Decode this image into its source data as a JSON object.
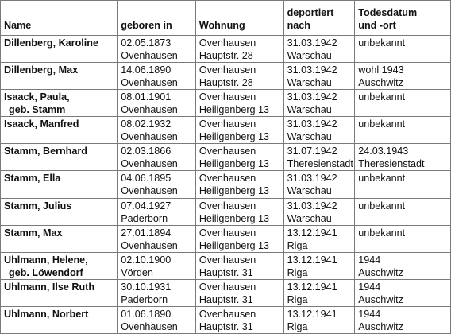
{
  "headers": {
    "name": "Name",
    "born": "geboren in",
    "residence": "Wohnung",
    "deported_1": "deportiert",
    "deported_2": "nach",
    "death_1": "Todesdatum",
    "death_2": "und -ort"
  },
  "rows": [
    {
      "name": [
        "Dillenberg, Karoline",
        ""
      ],
      "born": [
        "02.05.1873",
        "Ovenhausen"
      ],
      "residence": [
        "Ovenhausen",
        "Hauptstr. 28"
      ],
      "deported": [
        "31.03.1942",
        "Warschau"
      ],
      "death": [
        "unbekannt",
        ""
      ]
    },
    {
      "name": [
        "Dillenberg, Max",
        ""
      ],
      "born": [
        "14.06.1890",
        "Ovenhausen"
      ],
      "residence": [
        "Ovenhausen",
        "Hauptstr. 28"
      ],
      "deported": [
        "31.03.1942",
        "Warschau"
      ],
      "death": [
        "wohl 1943",
        "Auschwitz"
      ]
    },
    {
      "name": [
        "Isaack, Paula,",
        "geb. Stamm"
      ],
      "born": [
        "08.01.1901",
        "Ovenhausen"
      ],
      "residence": [
        "Ovenhausen",
        "Heiligenberg 13"
      ],
      "deported": [
        "31.03.1942",
        "Warschau"
      ],
      "death": [
        "unbekannt",
        ""
      ]
    },
    {
      "name": [
        "Isaack, Manfred",
        ""
      ],
      "born": [
        "08.02.1932",
        "Ovenhausen"
      ],
      "residence": [
        "Ovenhausen",
        "Heiligenberg 13"
      ],
      "deported": [
        "31.03.1942",
        "Warschau"
      ],
      "death": [
        "unbekannt",
        ""
      ]
    },
    {
      "name": [
        "Stamm, Bernhard",
        ""
      ],
      "born": [
        "02.03.1866",
        "Ovenhausen"
      ],
      "residence": [
        "Ovenhausen",
        "Heiligenberg 13"
      ],
      "deported": [
        "31.07.1942",
        "Theresienstadt"
      ],
      "death": [
        "24.03.1943",
        "Theresienstadt"
      ]
    },
    {
      "name": [
        "Stamm, Ella",
        ""
      ],
      "born": [
        "04.06.1895",
        "Ovenhausen"
      ],
      "residence": [
        "Ovenhausen",
        "Heiligenberg 13"
      ],
      "deported": [
        "31.03.1942",
        "Warschau"
      ],
      "death": [
        "unbekannt",
        ""
      ]
    },
    {
      "name": [
        "Stamm, Julius",
        ""
      ],
      "born": [
        "07.04.1927",
        "Paderborn"
      ],
      "residence": [
        "Ovenhausen",
        "Heiligenberg 13"
      ],
      "deported": [
        "31.03.1942",
        "Warschau"
      ],
      "death": [
        "unbekannt",
        ""
      ]
    },
    {
      "name": [
        "Stamm, Max",
        ""
      ],
      "born": [
        "27.01.1894",
        "Ovenhausen"
      ],
      "residence": [
        "Ovenhausen",
        "Heiligenberg 13"
      ],
      "deported": [
        "13.12.1941",
        "Riga"
      ],
      "death": [
        "unbekannt",
        ""
      ]
    },
    {
      "name": [
        "Uhlmann, Helene,",
        "geb. Löwendorf"
      ],
      "born": [
        "02.10.1900",
        "Vörden"
      ],
      "residence": [
        "Ovenhausen",
        "Hauptstr. 31"
      ],
      "deported": [
        "13.12.1941",
        "Riga"
      ],
      "death": [
        "1944",
        "Auschwitz"
      ]
    },
    {
      "name": [
        "Uhlmann, Ilse Ruth",
        ""
      ],
      "born": [
        "30.10.1931",
        "Paderborn"
      ],
      "residence": [
        "Ovenhausen",
        "Hauptstr. 31"
      ],
      "deported": [
        "13.12.1941",
        "Riga"
      ],
      "death": [
        "1944",
        "Auschwitz"
      ]
    },
    {
      "name": [
        "Uhlmann, Norbert",
        ""
      ],
      "born": [
        "01.06.1890",
        "Ovenhausen"
      ],
      "residence": [
        "Ovenhausen",
        "Hauptstr. 31"
      ],
      "deported": [
        "13.12.1941",
        "Riga"
      ],
      "death": [
        "1944",
        "Auschwitz"
      ]
    }
  ]
}
